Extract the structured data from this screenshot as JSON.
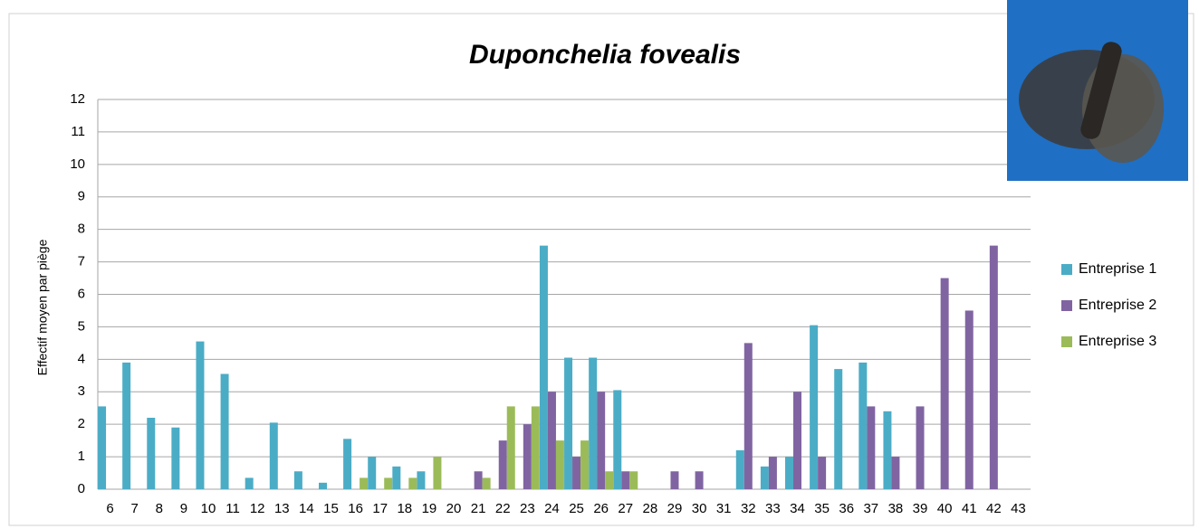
{
  "chart_data": {
    "type": "bar",
    "title": "Duponchelia fovealis",
    "y_label": "Effectif moyen par piège",
    "categories": [
      "6",
      "7",
      "8",
      "9",
      "10",
      "11",
      "12",
      "13",
      "14",
      "15",
      "16",
      "17",
      "18",
      "19",
      "20",
      "21",
      "22",
      "23",
      "24",
      "25",
      "26",
      "27",
      "28",
      "29",
      "30",
      "31",
      "32",
      "33",
      "34",
      "35",
      "36",
      "37",
      "38",
      "39",
      "40",
      "41",
      "42",
      "43"
    ],
    "series": [
      {
        "name": "Entreprise 1",
        "color": "#4bacc6",
        "values": [
          2.55,
          3.9,
          2.2,
          1.9,
          4.55,
          3.55,
          0.35,
          2.05,
          0.55,
          0.2,
          1.55,
          1.0,
          0.7,
          0.55,
          0,
          0,
          0,
          0,
          7.5,
          4.05,
          4.05,
          3.05,
          0,
          0,
          0,
          0,
          1.2,
          0.7,
          1.0,
          5.05,
          3.7,
          3.9,
          2.4,
          0,
          0,
          0,
          0,
          0
        ]
      },
      {
        "name": "Entreprise 2",
        "color": "#8064a2",
        "values": [
          0,
          0,
          0,
          0,
          0,
          0,
          0,
          0,
          0,
          0,
          0,
          0,
          0,
          0,
          0,
          0.55,
          1.5,
          2.0,
          3.0,
          1.0,
          3.0,
          0.55,
          0,
          0.55,
          0.55,
          0,
          4.5,
          1.0,
          3.0,
          1.0,
          0,
          2.55,
          1.0,
          2.55,
          6.5,
          5.5,
          7.5,
          0
        ]
      },
      {
        "name": "Entreprise 3",
        "color": "#9bbb59",
        "values": [
          0,
          0,
          0,
          0,
          0,
          0,
          0,
          0,
          0,
          0,
          0.35,
          0.35,
          0.35,
          1.0,
          0,
          0.35,
          2.55,
          2.55,
          1.5,
          1.5,
          0.55,
          0.55,
          0,
          0,
          0,
          0,
          0,
          0,
          0,
          0,
          0,
          0,
          0,
          0,
          0,
          0,
          0,
          0
        ]
      }
    ],
    "ylim": [
      0,
      12
    ],
    "yticks": [
      0,
      1,
      2,
      3,
      4,
      5,
      6,
      7,
      8,
      9,
      10,
      11,
      12
    ],
    "grid": true,
    "legend": "right"
  }
}
